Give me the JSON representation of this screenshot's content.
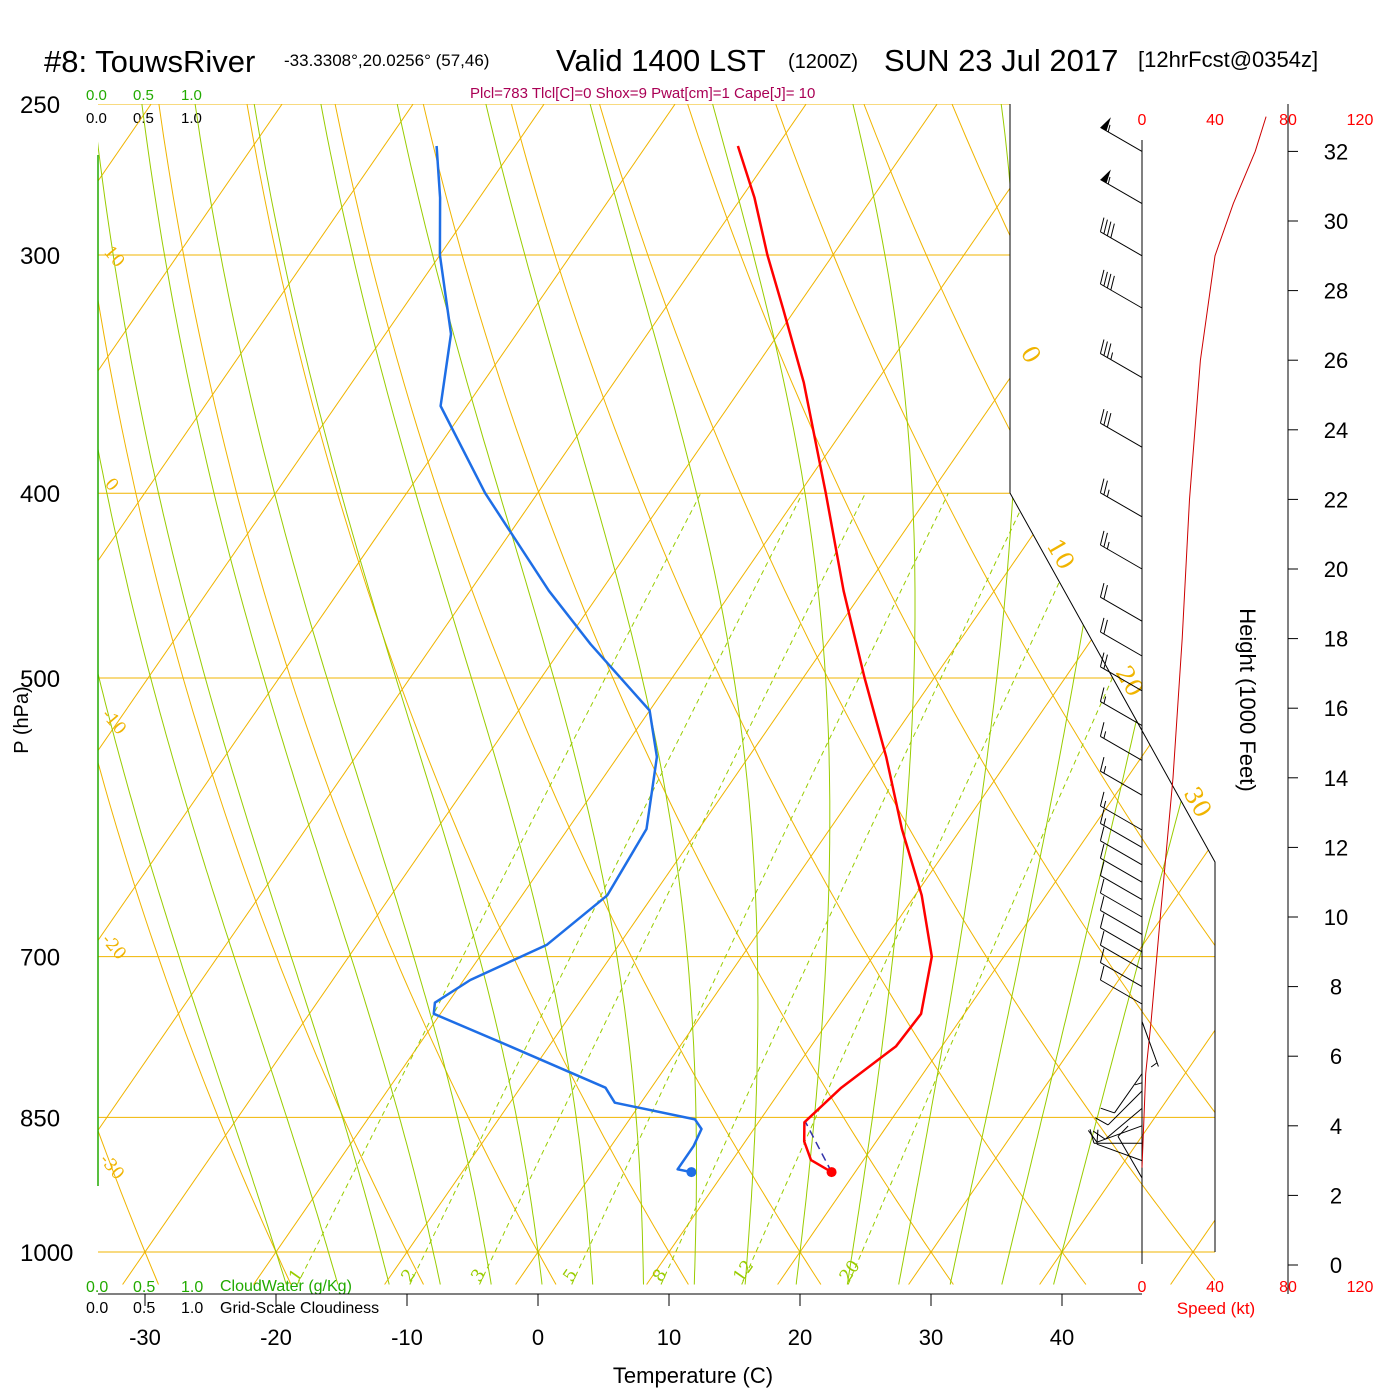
{
  "header": {
    "station": "#8: TouwsRiver",
    "location": "-33.3308°,20.0256° (57,46)",
    "valid": "Valid 1400 LST",
    "zulu": "(1200Z)",
    "date": "SUN 23 Jul 2017",
    "forecast": "[12hrFcst@0354z]",
    "indices": "Plcl=783 Tlcl[C]=0 Shox=9 Pwat[cm]=1 Cape[J]= 10"
  },
  "cloud_scales": {
    "water_ticks": [
      "0.0",
      "0.5",
      "1.0"
    ],
    "cloudiness_ticks": [
      "0.0",
      "0.5",
      "1.0"
    ],
    "water_label": "CloudWater (g/Kg)",
    "cloudiness_label": "Grid-Scale Cloudiness"
  },
  "speed_axis": {
    "ticks": [
      "0",
      "40",
      "80",
      "120"
    ],
    "label": "Speed (kt)"
  },
  "height_axis": {
    "label": "Height (1000 Feet)",
    "ticks": [
      "0",
      "2",
      "4",
      "6",
      "8",
      "10",
      "12",
      "14",
      "16",
      "18",
      "20",
      "22",
      "24",
      "26",
      "28",
      "30",
      "32"
    ]
  },
  "colors": {
    "isobar": "#f0b400",
    "dry_adiabat": "#f0b400",
    "moist_adiabat": "#99cc00",
    "mixing_ratio": "#99cc00",
    "temperature": "#ff0000",
    "dewpoint": "#1e6ee6",
    "wind_speed": "#cc0000",
    "index_text": "#aa0055",
    "cloud_text": "#22aa00"
  },
  "chart_data": {
    "type": "line",
    "subtype": "skew-T log-P sounding",
    "xlabel": "Temperature (C)",
    "ylabel": "P (hPa)",
    "x_ticks": [
      -30,
      -20,
      -10,
      0,
      10,
      20,
      30,
      40
    ],
    "p_ticks": [
      250,
      300,
      400,
      500,
      700,
      850,
      1000
    ],
    "x_range_at_1000": [
      -33,
      48
    ],
    "p_range": [
      250,
      1030
    ],
    "dry_adiabat_labels": [
      {
        "theta_c": 10,
        "text": "10"
      },
      {
        "theta_c": 0,
        "text": "0"
      },
      {
        "theta_c": -10,
        "text": "-10"
      },
      {
        "theta_c": -20,
        "text": "-20"
      },
      {
        "theta_c": -30,
        "text": "-30"
      },
      {
        "theta_c": 0,
        "text": "0"
      },
      {
        "theta_c": 10,
        "text": "10"
      },
      {
        "theta_c": 20,
        "text": "20"
      },
      {
        "theta_c": 30,
        "text": "30"
      }
    ],
    "mixing_ratio_labels": [
      "1",
      "2",
      "3",
      "5",
      "8",
      "12",
      "20"
    ],
    "series": [
      {
        "name": "Temperature",
        "points": [
          {
            "p": 908,
            "t": 18.2
          },
          {
            "p": 895,
            "t": 16.0
          },
          {
            "p": 875,
            "t": 14.5
          },
          {
            "p": 855,
            "t": 13.5
          },
          {
            "p": 820,
            "t": 14.5
          },
          {
            "p": 780,
            "t": 16.5
          },
          {
            "p": 750,
            "t": 16.7
          },
          {
            "p": 700,
            "t": 14.5
          },
          {
            "p": 650,
            "t": 10.5
          },
          {
            "p": 600,
            "t": 5.5
          },
          {
            "p": 550,
            "t": 0.5
          },
          {
            "p": 500,
            "t": -5.3
          },
          {
            "p": 450,
            "t": -11.5
          },
          {
            "p": 400,
            "t": -18.0
          },
          {
            "p": 350,
            "t": -25.5
          },
          {
            "p": 320,
            "t": -31.0
          },
          {
            "p": 300,
            "t": -35.0
          },
          {
            "p": 280,
            "t": -39.0
          },
          {
            "p": 263,
            "t": -43.0
          }
        ]
      },
      {
        "name": "Dewpoint",
        "points": [
          {
            "p": 908,
            "t": 7.5
          },
          {
            "p": 905,
            "t": 6.3
          },
          {
            "p": 880,
            "t": 6.3
          },
          {
            "p": 862,
            "t": 6.0
          },
          {
            "p": 852,
            "t": 5.0
          },
          {
            "p": 835,
            "t": -2.0
          },
          {
            "p": 820,
            "t": -3.5
          },
          {
            "p": 780,
            "t": -13.0
          },
          {
            "p": 750,
            "t": -20.5
          },
          {
            "p": 740,
            "t": -21.0
          },
          {
            "p": 720,
            "t": -19.5
          },
          {
            "p": 690,
            "t": -15.5
          },
          {
            "p": 650,
            "t": -13.5
          },
          {
            "p": 600,
            "t": -14.0
          },
          {
            "p": 550,
            "t": -17.0
          },
          {
            "p": 520,
            "t": -20.0
          },
          {
            "p": 480,
            "t": -28.0
          },
          {
            "p": 450,
            "t": -34.0
          },
          {
            "p": 400,
            "t": -44.0
          },
          {
            "p": 360,
            "t": -52.0
          },
          {
            "p": 330,
            "t": -55.0
          },
          {
            "p": 300,
            "t": -60.0
          },
          {
            "p": 280,
            "t": -63.0
          },
          {
            "p": 263,
            "t": -66.0
          }
        ]
      },
      {
        "name": "Parcel",
        "points": [
          {
            "p": 908,
            "t": 18.2
          },
          {
            "p": 880,
            "t": 15.8
          },
          {
            "p": 855,
            "t": 13.6
          }
        ]
      }
    ],
    "wind_speed_profile": [
      {
        "h_kft": 2.8,
        "kt": 0
      },
      {
        "h_kft": 5.5,
        "kt": 2
      },
      {
        "h_kft": 7.0,
        "kt": 5
      },
      {
        "h_kft": 10.0,
        "kt": 10
      },
      {
        "h_kft": 14.0,
        "kt": 17
      },
      {
        "h_kft": 18.0,
        "kt": 22
      },
      {
        "h_kft": 22.0,
        "kt": 26
      },
      {
        "h_kft": 26.0,
        "kt": 32
      },
      {
        "h_kft": 29.0,
        "kt": 40
      },
      {
        "h_kft": 30.5,
        "kt": 50
      },
      {
        "h_kft": 32.0,
        "kt": 62
      },
      {
        "h_kft": 33.0,
        "kt": 68
      }
    ],
    "wind_barbs": [
      {
        "h_kft": 2.5,
        "dir": 330,
        "kt": 10
      },
      {
        "h_kft": 3.0,
        "dir": 290,
        "kt": 10
      },
      {
        "h_kft": 3.5,
        "dir": 270,
        "kt": 10
      },
      {
        "h_kft": 4.0,
        "dir": 250,
        "kt": 10
      },
      {
        "h_kft": 4.5,
        "dir": 230,
        "kt": 10
      },
      {
        "h_kft": 5.0,
        "dir": 225,
        "kt": 10
      },
      {
        "h_kft": 5.5,
        "dir": 215,
        "kt": 10
      },
      {
        "h_kft": 6.5,
        "dir": 180,
        "kt": 5
      },
      {
        "h_kft": 7.0,
        "dir": 160,
        "kt": 5
      },
      {
        "h_kft": 7.5,
        "dir": 300,
        "kt": 10
      },
      {
        "h_kft": 8.0,
        "dir": 300,
        "kt": 10
      },
      {
        "h_kft": 8.5,
        "dir": 300,
        "kt": 10
      },
      {
        "h_kft": 9.0,
        "dir": 300,
        "kt": 10
      },
      {
        "h_kft": 9.5,
        "dir": 300,
        "kt": 10
      },
      {
        "h_kft": 10.0,
        "dir": 300,
        "kt": 10
      },
      {
        "h_kft": 10.5,
        "dir": 300,
        "kt": 10
      },
      {
        "h_kft": 11.0,
        "dir": 300,
        "kt": 10
      },
      {
        "h_kft": 11.5,
        "dir": 300,
        "kt": 10
      },
      {
        "h_kft": 12.0,
        "dir": 300,
        "kt": 15
      },
      {
        "h_kft": 12.5,
        "dir": 300,
        "kt": 15
      },
      {
        "h_kft": 13.5,
        "dir": 300,
        "kt": 15
      },
      {
        "h_kft": 14.5,
        "dir": 300,
        "kt": 15
      },
      {
        "h_kft": 15.5,
        "dir": 300,
        "kt": 15
      },
      {
        "h_kft": 16.5,
        "dir": 300,
        "kt": 20
      },
      {
        "h_kft": 17.5,
        "dir": 300,
        "kt": 20
      },
      {
        "h_kft": 18.5,
        "dir": 300,
        "kt": 20
      },
      {
        "h_kft": 20.0,
        "dir": 300,
        "kt": 25
      },
      {
        "h_kft": 21.5,
        "dir": 300,
        "kt": 25
      },
      {
        "h_kft": 23.5,
        "dir": 300,
        "kt": 30
      },
      {
        "h_kft": 25.5,
        "dir": 300,
        "kt": 35
      },
      {
        "h_kft": 27.5,
        "dir": 300,
        "kt": 40
      },
      {
        "h_kft": 29.0,
        "dir": 300,
        "kt": 40
      },
      {
        "h_kft": 30.5,
        "dir": 300,
        "kt": 55
      },
      {
        "h_kft": 32.0,
        "dir": 300,
        "kt": 55
      }
    ]
  }
}
